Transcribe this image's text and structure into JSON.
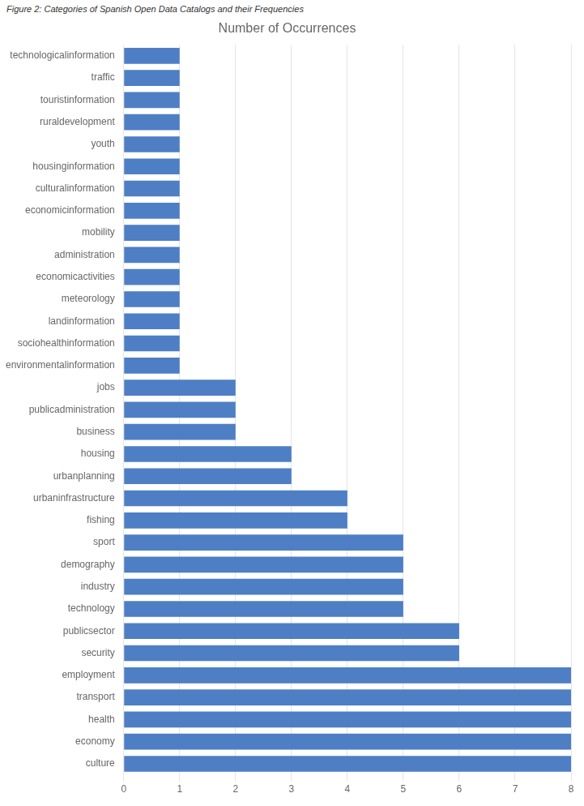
{
  "chart_data": {
    "type": "bar",
    "orientation": "horizontal",
    "title": "Number of Occurrences",
    "annotations": [
      "Figure 2: Categories of Spanish Open Data Catalogs and their Frequencies"
    ],
    "categories": [
      "culture",
      "economy",
      "health",
      "transport",
      "employment",
      "security",
      "publicsector",
      "technology",
      "industry",
      "demography",
      "sport",
      "fishing",
      "urbaninfrastructure",
      "urbanplanning",
      "housing",
      "business",
      "publicadministration",
      "jobs",
      "environmentalinformation",
      "sociohealthinformation",
      "landinformation",
      "meteorology",
      "economicactivities",
      "administration",
      "mobility",
      "economicinformation",
      "culturalinformation",
      "housinginformation",
      "youth",
      "ruraldevelopment",
      "touristinformation",
      "traffic",
      "technologicalinformation"
    ],
    "values": [
      8,
      8,
      8,
      8,
      8,
      6,
      6,
      5,
      5,
      5,
      5,
      4,
      4,
      3,
      3,
      2,
      2,
      2,
      1,
      1,
      1,
      1,
      1,
      1,
      1,
      1,
      1,
      1,
      1,
      1,
      1,
      1,
      1
    ],
    "color": "#4e7fc4",
    "xlim": [
      0,
      8
    ],
    "xticks": [
      0,
      1,
      2,
      3,
      4,
      5,
      6,
      7,
      8
    ],
    "grid": true
  }
}
